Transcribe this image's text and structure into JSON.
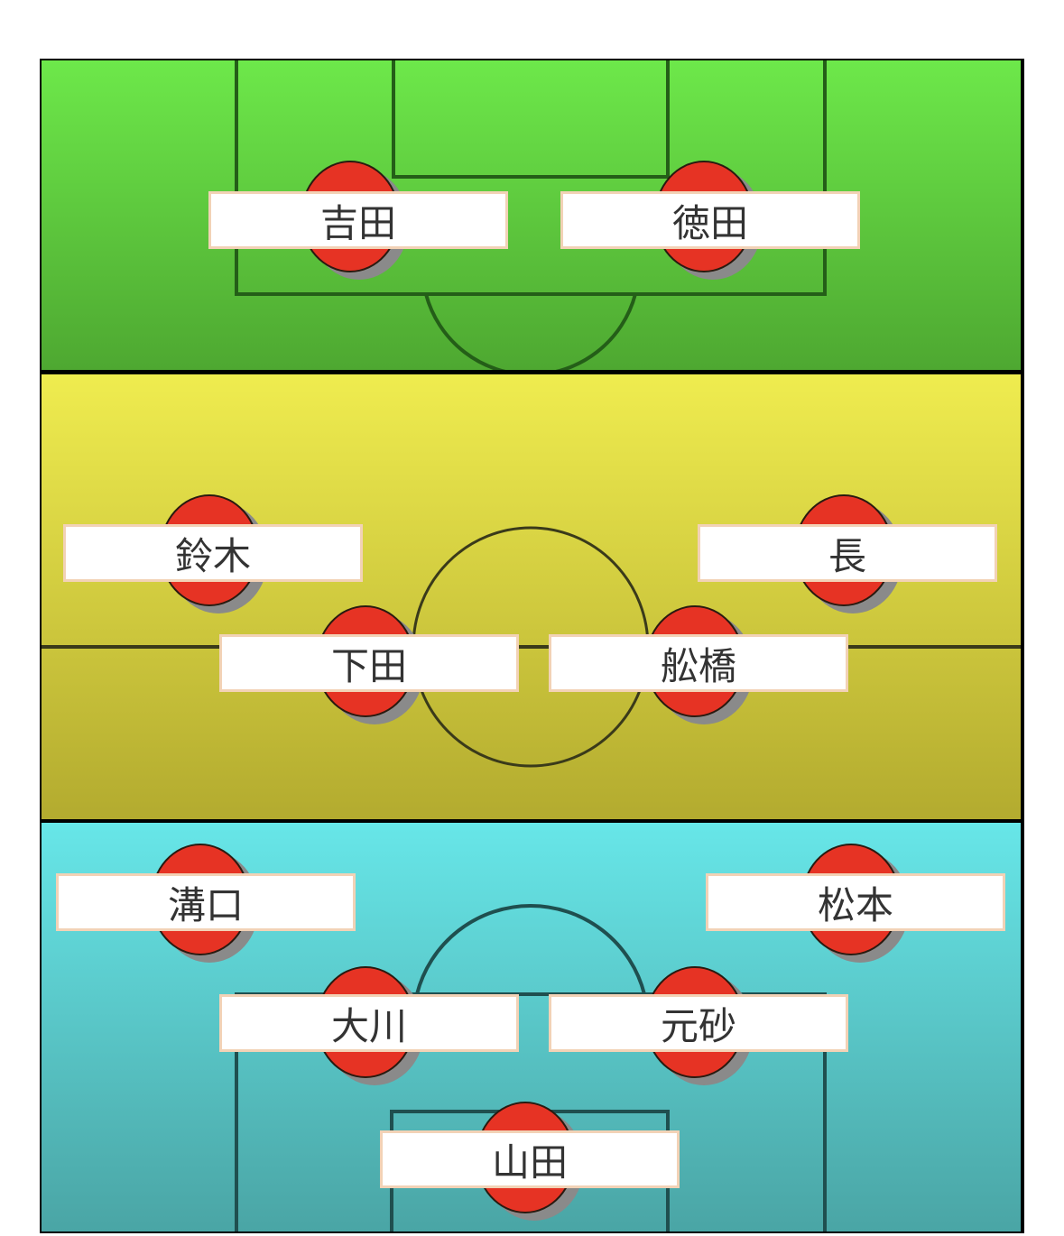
{
  "formation": {
    "attack": {
      "color": "#5ccf3d",
      "players": [
        "吉田",
        "徳田"
      ]
    },
    "midfield": {
      "color": "#d8d33f",
      "players": [
        "鈴木",
        "長",
        "下田",
        "舩橋"
      ]
    },
    "defense": {
      "color": "#5bd0d2",
      "players": [
        "溝口",
        "松本",
        "大川",
        "元砂",
        "山田"
      ]
    }
  },
  "marker_color": "#e63324",
  "marker_icon": "player-disc-icon"
}
